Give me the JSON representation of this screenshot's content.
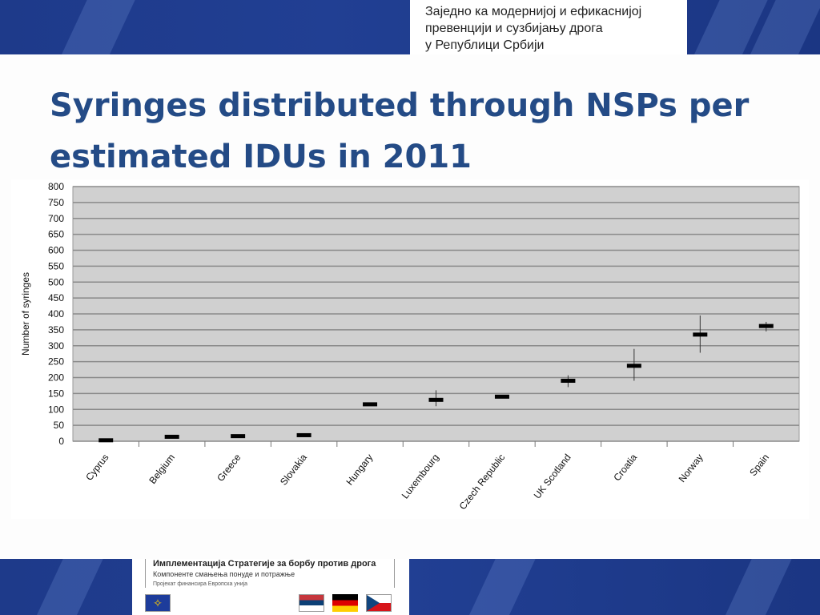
{
  "header": {
    "lines": [
      "Заједно ка модернијој и ефикаснијој",
      "превенцији и сузбијању дрога",
      "у Републици Србији"
    ]
  },
  "title": {
    "line1": "Syringes distributed through NSPs per",
    "line2": "estimated IDUs in 2011"
  },
  "footer": {
    "line1": "Имплементација Стратегије за борбу против дрога",
    "line2": "Компоненте смањења понуде и потражње",
    "line3": "Пројекат финансира Европска унија",
    "flags": [
      "eu-flag-icon",
      "serbia-flag-icon",
      "germany-flag-icon",
      "czech-flag-icon"
    ]
  },
  "chart_data": {
    "type": "scatter",
    "title": "",
    "xlabel": "",
    "ylabel": "Number of syringes",
    "ylim": [
      0,
      800
    ],
    "yticks": [
      0,
      50,
      100,
      150,
      200,
      250,
      300,
      350,
      400,
      450,
      500,
      550,
      600,
      650,
      700,
      750,
      800
    ],
    "grid": true,
    "categories": [
      "Cyprus",
      "Belgium",
      "Greece",
      "Slovakia",
      "Hungary",
      "Luxembourg",
      "Czech Republic",
      "UK Scotland",
      "Croatia",
      "Norway",
      "Spain"
    ],
    "values": [
      3,
      14,
      16,
      19,
      116,
      130,
      140,
      190,
      237,
      335,
      362
    ],
    "range_low": [
      null,
      null,
      null,
      null,
      null,
      110,
      null,
      170,
      190,
      278,
      345
    ],
    "range_high": [
      null,
      null,
      null,
      null,
      null,
      160,
      null,
      207,
      290,
      395,
      375
    ],
    "colors": {
      "plot_bg": "#d0d0d0",
      "grid": "#8a8a8a",
      "marker": "#000000"
    }
  }
}
